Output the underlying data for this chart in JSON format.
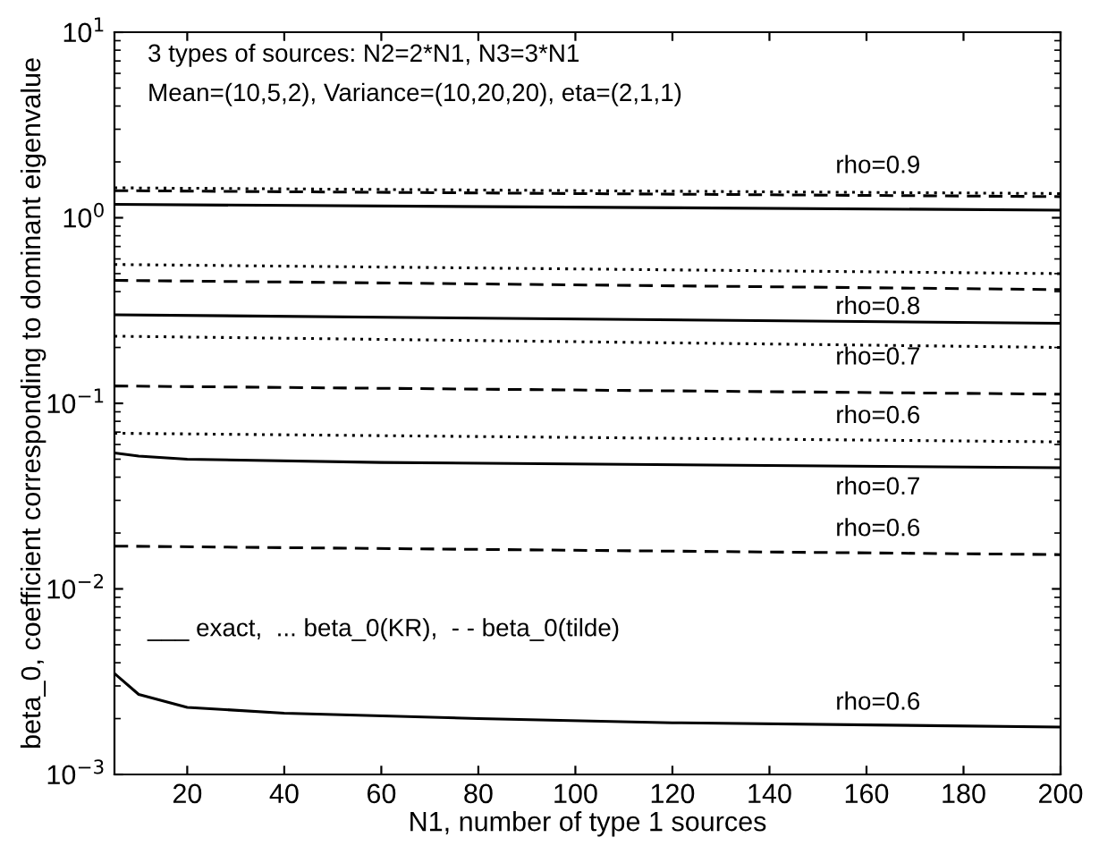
{
  "chart_data": {
    "type": "line",
    "xlabel": "N1, number of type 1 sources",
    "ylabel": "beta_0, coefficient corresponding to dominant eigenvalue",
    "log": "y",
    "xlim": [
      5,
      200
    ],
    "xticks": [
      20,
      40,
      60,
      80,
      100,
      120,
      140,
      160,
      180,
      200
    ],
    "ylim": [
      0.001,
      10
    ],
    "yticks": [
      {
        "value": 0.001,
        "label": "10$^{−3}$"
      },
      {
        "value": 0.01,
        "label": "10$^{−2}$"
      },
      {
        "value": 0.1,
        "label": "10$^{−1}$"
      },
      {
        "value": 1,
        "label": "10$^{0}$"
      },
      {
        "value": 10,
        "label": "10$^{1}$"
      }
    ],
    "grid": false,
    "legend": false,
    "series": [
      {
        "color": "#000000",
        "line_style": "dotted",
        "x": [
          5,
          200
        ],
        "values": [
          1.45,
          1.35
        ]
      },
      {
        "color": "#000000",
        "line_style": "dashed",
        "x": [
          5,
          200
        ],
        "values": [
          1.4,
          1.3
        ]
      },
      {
        "color": "#000000",
        "line_style": "solid",
        "x": [
          5,
          200
        ],
        "values": [
          1.18,
          1.1
        ]
      },
      {
        "color": "#000000",
        "line_style": "dotted",
        "x": [
          5,
          200
        ],
        "values": [
          0.56,
          0.5
        ]
      },
      {
        "color": "#000000",
        "line_style": "dashed",
        "x": [
          5,
          200
        ],
        "values": [
          0.46,
          0.41
        ]
      },
      {
        "color": "#000000",
        "line_style": "solid",
        "x": [
          5,
          200
        ],
        "values": [
          0.3,
          0.27
        ]
      },
      {
        "color": "#000000",
        "line_style": "dotted",
        "x": [
          5,
          200
        ],
        "values": [
          0.23,
          0.2
        ]
      },
      {
        "color": "#000000",
        "line_style": "dashed",
        "x": [
          5,
          200
        ],
        "values": [
          0.124,
          0.112
        ]
      },
      {
        "color": "#000000",
        "line_style": "solid",
        "x": [
          5,
          10,
          20,
          60,
          200
        ],
        "values": [
          0.054,
          0.052,
          0.05,
          0.048,
          0.045
        ]
      },
      {
        "color": "#000000",
        "line_style": "dotted",
        "x": [
          5,
          200
        ],
        "values": [
          0.069,
          0.062
        ]
      },
      {
        "color": "#000000",
        "line_style": "dashed",
        "x": [
          5,
          200
        ],
        "values": [
          0.017,
          0.0153
        ]
      },
      {
        "color": "#000000",
        "line_style": "solid",
        "x": [
          5,
          10,
          20,
          40,
          80,
          120,
          200
        ],
        "values": [
          0.0035,
          0.0027,
          0.0023,
          0.00214,
          0.002,
          0.0019,
          0.0018
        ]
      }
    ],
    "annotations": [
      "3 types of sources: N2=2*N1, N3=3*N1",
      "Mean=(10,5,2), Variance=(10,20,20), eta=(2,1,1)",
      "___ exact,  ... beta_0(KR),  - - beta_0(tilde)",
      "rho=0.9",
      "rho=0.8",
      "rho=0.7",
      "rho=0.6",
      "rho=0.7",
      "rho=0.6",
      "rho=0.6"
    ]
  }
}
